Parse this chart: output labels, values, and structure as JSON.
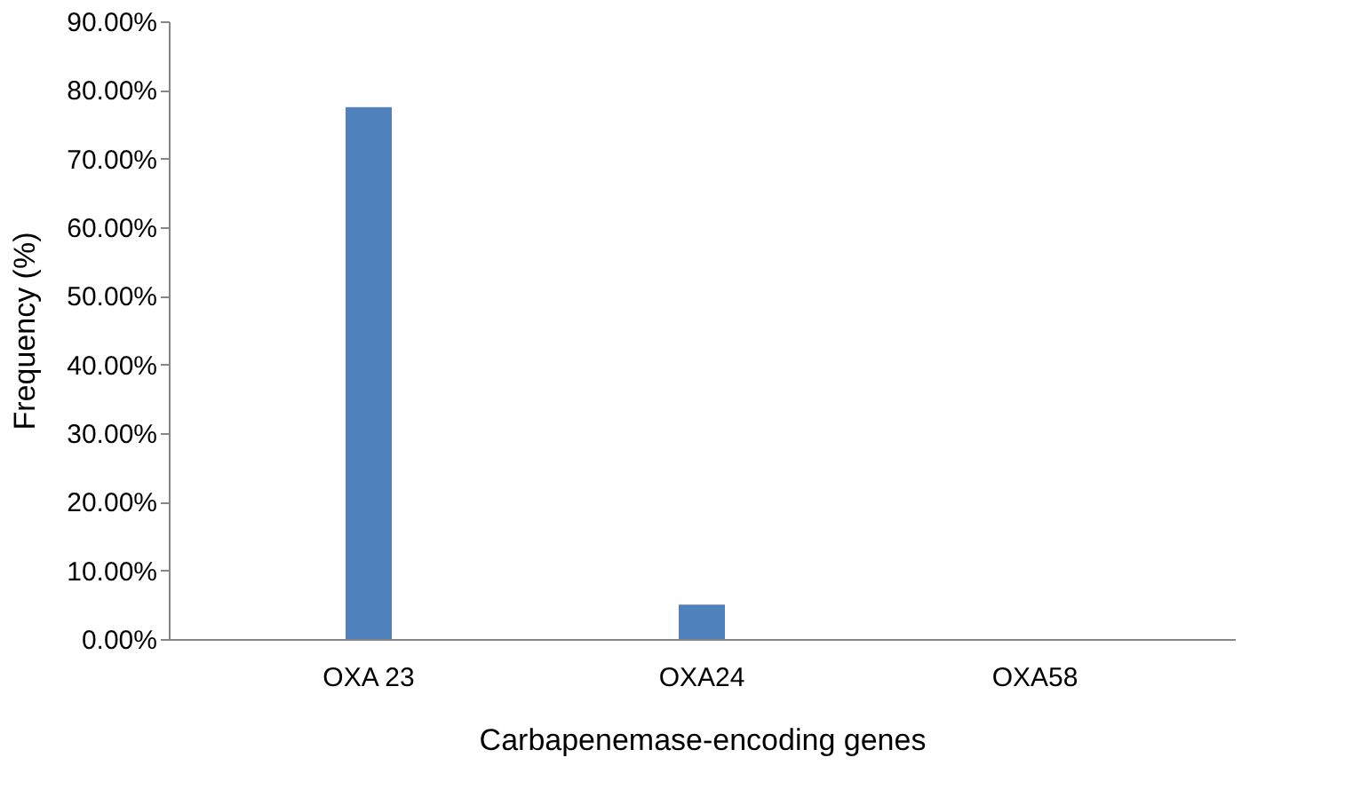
{
  "chart_data": {
    "type": "bar",
    "xlabel": "Carbapenemase-encoding genes",
    "ylabel": "Frequency (%)",
    "categories": [
      "OXA 23",
      "OXA24",
      "OXA58"
    ],
    "series": [
      {
        "color": "#4f81bd",
        "values": [
          77.5,
          5.0,
          0
        ]
      }
    ],
    "ylim": [
      0,
      90
    ],
    "yticks": [
      {
        "value": 0,
        "label": "0.00%"
      },
      {
        "value": 10,
        "label": "10.00%"
      },
      {
        "value": 20,
        "label": "20.00%"
      },
      {
        "value": 30,
        "label": "30.00%"
      },
      {
        "value": 40,
        "label": "40.00%"
      },
      {
        "value": 50,
        "label": "50.00%"
      },
      {
        "value": 60,
        "label": "60.00%"
      },
      {
        "value": 70,
        "label": "70.00%"
      },
      {
        "value": 80,
        "label": "80.00%"
      },
      {
        "value": 90,
        "label": "90.00%"
      }
    ],
    "grid": false
  }
}
